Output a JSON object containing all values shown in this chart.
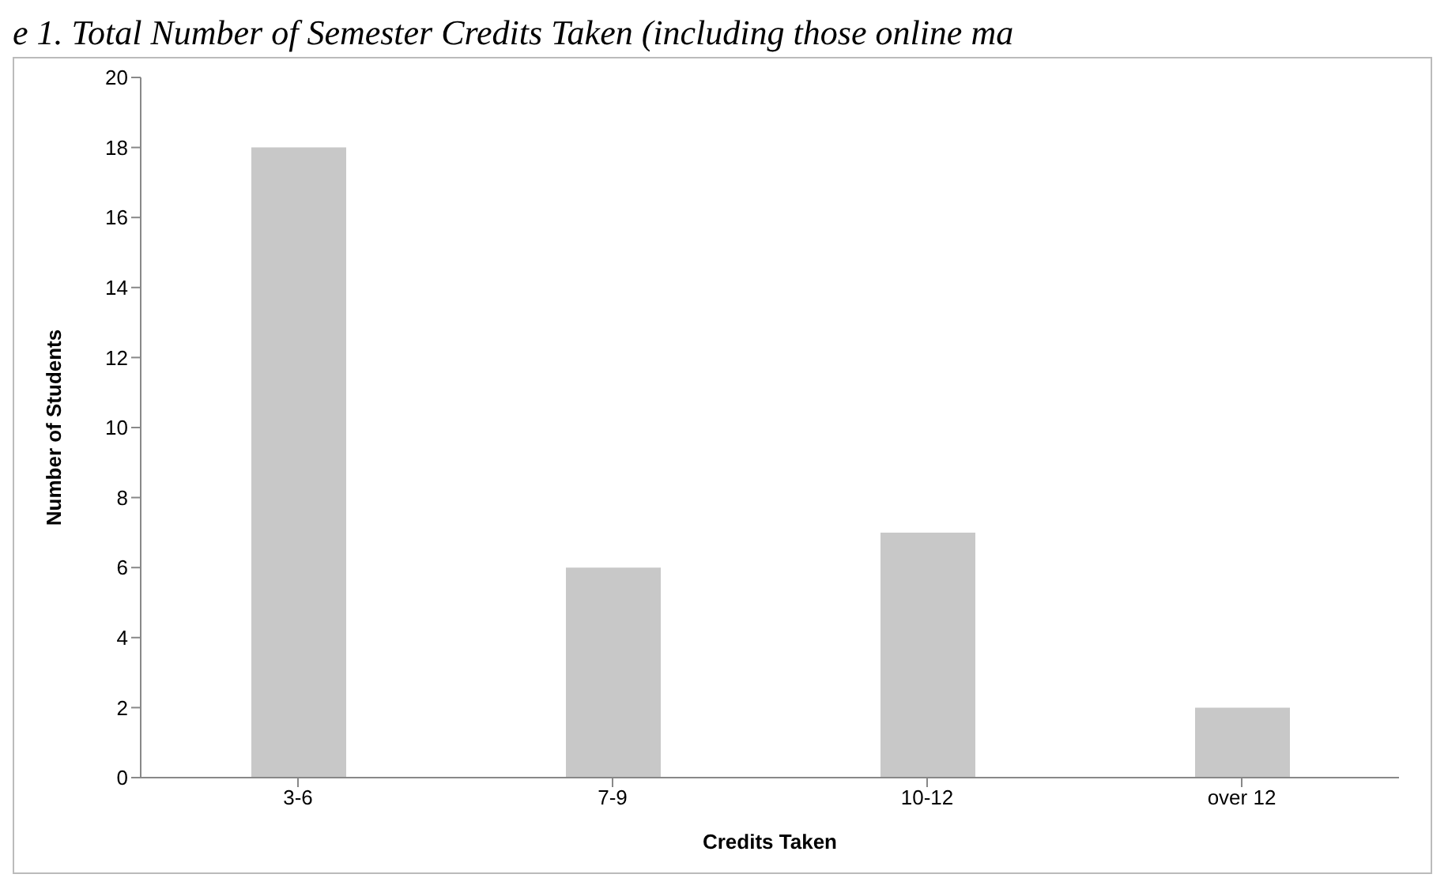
{
  "chart_data": {
    "type": "bar",
    "title": "e 1. Total Number of Semester Credits Taken (including those online ma",
    "categories": [
      "3-6",
      "7-9",
      "10-12",
      "over 12"
    ],
    "values": [
      18,
      6,
      7,
      2
    ],
    "color": "#c8c8c8",
    "xlabel": "Credits Taken",
    "ylabel": "Number of Students",
    "ylim": [
      0,
      20
    ],
    "yticks": [
      0,
      2,
      4,
      6,
      8,
      10,
      12,
      14,
      16,
      18,
      20
    ],
    "grid": false
  }
}
